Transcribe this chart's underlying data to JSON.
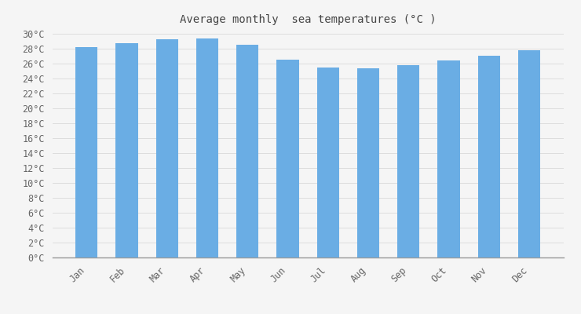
{
  "months": [
    "Jan",
    "Feb",
    "Mar",
    "Apr",
    "May",
    "Jun",
    "Jul",
    "Aug",
    "Sep",
    "Oct",
    "Nov",
    "Dec"
  ],
  "values": [
    28.2,
    28.7,
    29.2,
    29.4,
    28.5,
    26.5,
    25.5,
    25.4,
    25.8,
    26.4,
    27.0,
    27.8
  ],
  "bar_color": "#6aade4",
  "title": "Average monthly  sea temperatures (°C )",
  "ylim": [
    0,
    30
  ],
  "ytick_step": 2,
  "background_color": "#f5f5f5",
  "plot_bg_color": "#f5f5f5",
  "grid_color": "#dddddd",
  "title_fontsize": 10,
  "bar_width": 0.55
}
